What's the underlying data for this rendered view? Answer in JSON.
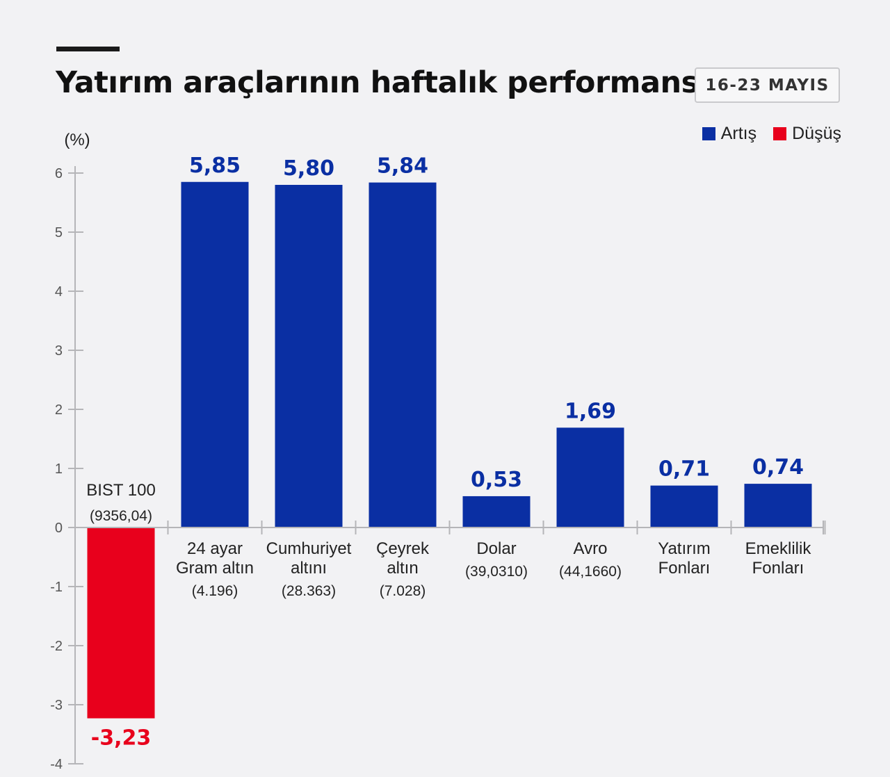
{
  "title": "Yatırım araçlarının haftalık performansı",
  "date_badge": "16-23 MAYIS",
  "legend": [
    {
      "label": "Artış",
      "color": "#0a2fa3"
    },
    {
      "label": "Düşüş",
      "color": "#e8001c"
    }
  ],
  "chart_data": {
    "type": "bar",
    "ylabel": "(%)",
    "ylim": [
      -4,
      6
    ],
    "yticks": [
      6,
      5,
      4,
      3,
      2,
      1,
      0,
      -1,
      -2,
      -3,
      -4
    ],
    "categories": [
      {
        "lines": [
          "BIST 100",
          "(9356,04)"
        ],
        "position": "above"
      },
      {
        "lines": [
          "24 ayar",
          "Gram altın",
          "(4.196)"
        ],
        "position": "below"
      },
      {
        "lines": [
          "Cumhuriyet",
          "altını",
          "(28.363)"
        ],
        "position": "below"
      },
      {
        "lines": [
          "Çeyrek",
          "altın",
          "(7.028)"
        ],
        "position": "below"
      },
      {
        "lines": [
          "Dolar",
          "(39,0310)"
        ],
        "position": "below"
      },
      {
        "lines": [
          "Avro",
          "(44,1660)"
        ],
        "position": "below"
      },
      {
        "lines": [
          "Yatırım",
          "Fonları"
        ],
        "position": "below"
      },
      {
        "lines": [
          "Emeklilik",
          "Fonları"
        ],
        "position": "below"
      }
    ],
    "values": [
      -3.23,
      5.85,
      5.8,
      5.84,
      0.53,
      1.69,
      0.71,
      0.74
    ],
    "value_labels": [
      "-3,23",
      "5,85",
      "5,80",
      "5,84",
      "0,53",
      "1,69",
      "0,71",
      "0,74"
    ],
    "colors": {
      "up": "#0a2fa3",
      "down": "#e8001c"
    },
    "grid": false
  }
}
